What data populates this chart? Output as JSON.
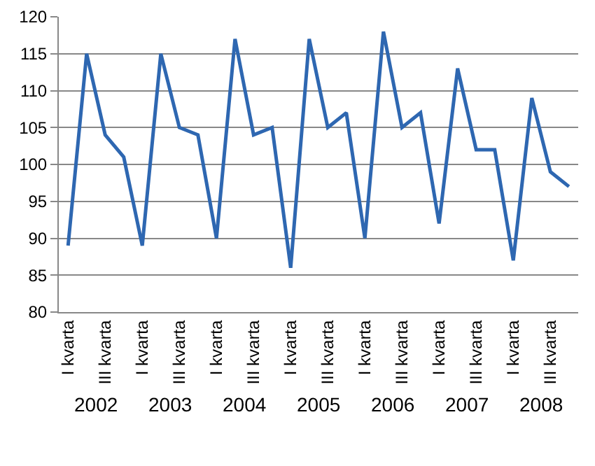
{
  "chart_data": {
    "type": "line",
    "categories": [
      "I kvarta",
      null,
      "III kvarta",
      null,
      "I kvarta",
      null,
      "III kvarta",
      null,
      "I kvarta",
      null,
      "III kvarta",
      null,
      "I kvarta",
      null,
      "III kvarta",
      null,
      "I kvarta",
      null,
      "III kvarta",
      null,
      "I kvarta",
      null,
      "III kvarta",
      null,
      "I kvarta",
      null,
      "III kvarta",
      null
    ],
    "series": [
      {
        "color": "#2e67b1",
        "values": [
          89,
          115,
          104,
          101,
          89,
          115,
          105,
          104,
          90,
          117,
          104,
          105,
          86,
          117,
          105,
          107,
          90,
          118,
          105,
          107,
          92,
          113,
          102,
          102,
          87,
          109,
          99,
          97
        ]
      }
    ],
    "annotations": [
      "2002",
      "2003",
      "2004",
      "2005",
      "2006",
      "2007",
      "2008"
    ],
    "ylim": [
      80,
      120
    ],
    "yticks": [
      80,
      85,
      90,
      95,
      100,
      105,
      110,
      115,
      120
    ],
    "grid": "y",
    "marker": "none",
    "line_style": "solid"
  }
}
